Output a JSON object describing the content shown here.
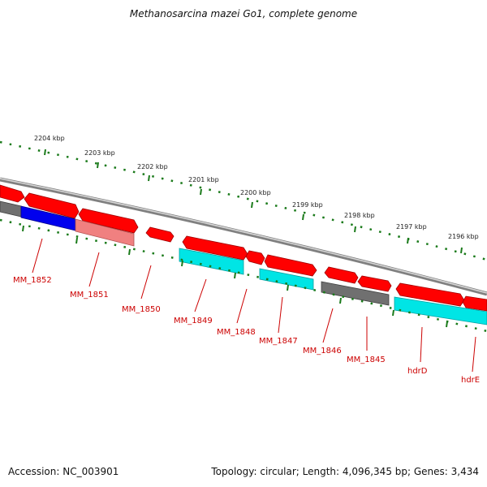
{
  "title": "Methanosarcina mazei Go1, complete genome",
  "footer": {
    "accession": "Accession: NC_003901",
    "summary": "Topology: circular; Length: 4,096,345 bp; Genes: 3,434"
  },
  "colors": {
    "gene_red": "#ff0000",
    "gene_pink": "#f08080",
    "gene_blue": "#0000ee",
    "gene_cyan": "#00e5e5",
    "gene_gray": "#707070",
    "label_red": "#cc0000",
    "tick_green": "#1a7a1a",
    "backbone": "#808080"
  },
  "scale_labels": [
    "2204 kbp",
    "2203 kbp",
    "2202 kbp",
    "2201 kbp",
    "2200 kbp",
    "2199 kbp",
    "2198 kbp",
    "2197 kbp",
    "2196 kbp"
  ],
  "gene_labels": [
    "MM_1852",
    "MM_1851",
    "MM_1850",
    "MM_1849",
    "MM_1848",
    "MM_1847",
    "MM_1846",
    "MM_1845",
    "hdrD",
    "hdrE"
  ]
}
